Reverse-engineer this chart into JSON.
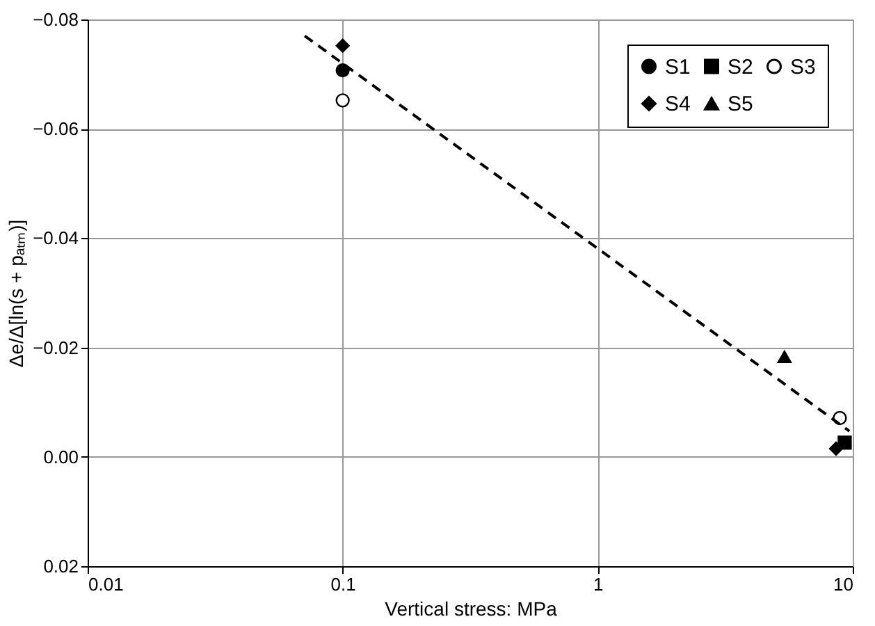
{
  "chart_data": {
    "type": "scatter",
    "xlabel": "Vertical stress: MPa",
    "ylabel": "Δe/Δ[ln(s + pₐₜₘ)]",
    "log": "x",
    "grid": true,
    "legend": "top right",
    "xlim": [
      0.01,
      10
    ],
    "xticks": [
      0.01,
      0.1,
      1,
      10
    ],
    "ylim": [
      0.02,
      -0.08
    ],
    "yticks": [
      {
        "value": -0.08,
        "label": "−0.08"
      },
      {
        "value": -0.06,
        "label": "−0.06"
      },
      {
        "value": -0.04,
        "label": "−0.04"
      },
      {
        "value": -0.02,
        "label": "−0.02"
      },
      {
        "value": 0,
        "label": "0.00"
      },
      {
        "value": 0.02,
        "label": "0.02"
      }
    ],
    "series": [
      {
        "name": "S1",
        "color": "#000000",
        "marker": "circle",
        "x": [
          0.1
        ],
        "values": [
          -0.0707
        ]
      },
      {
        "name": "S2",
        "color": "#000000",
        "marker": "square",
        "x": [
          9.3
        ],
        "values": [
          -0.0026
        ]
      },
      {
        "name": "S3",
        "color": "#000000",
        "marker": "circle",
        "x": [
          0.1,
          8.9
        ],
        "values": [
          -0.0652,
          -0.0071
        ]
      },
      {
        "name": "S4",
        "color": "#000000",
        "marker": "diamond",
        "x": [
          0.1,
          8.6
        ],
        "values": [
          -0.0752,
          -0.0015
        ]
      },
      {
        "name": "S5",
        "color": "#000000",
        "marker": "triangle",
        "x": [
          5.4
        ],
        "values": [
          -0.0183
        ]
      },
      {
        "type": "line",
        "color": "#000000",
        "line_style": "dashed",
        "marker": "none",
        "x": [
          0.071,
          9.7
        ],
        "values": [
          -0.077,
          -0.0047
        ]
      }
    ]
  }
}
